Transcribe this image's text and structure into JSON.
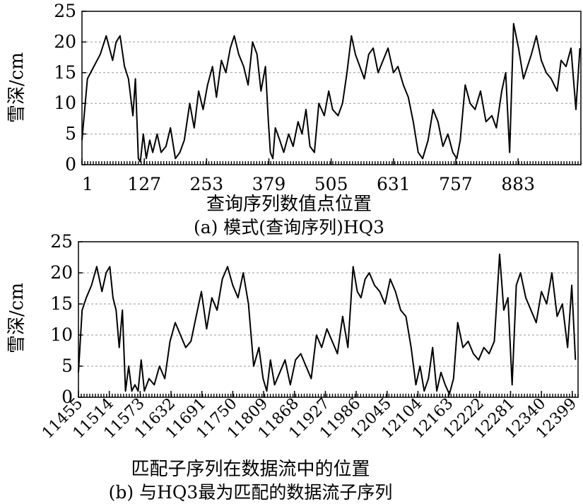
{
  "chart_data": [
    {
      "type": "line",
      "caption": "(a) 模式(查询序列)HQ3",
      "xlabel": "查询序列数值点位置",
      "ylabel": "雪深/cm",
      "xlim": [
        1,
        1010
      ],
      "ylim": [
        0,
        25
      ],
      "yticks": [
        0,
        5,
        10,
        15,
        20,
        25
      ],
      "xtick_labels": [
        "1",
        "127",
        "253",
        "379",
        "505",
        "631",
        "757",
        "883"
      ],
      "xtick_values": [
        1,
        127,
        253,
        379,
        505,
        631,
        757,
        883
      ],
      "grid": "horizontal",
      "series": [
        {
          "x": [
            1,
            12,
            25,
            38,
            50,
            63,
            70,
            78,
            87,
            95,
            104,
            109,
            115,
            119,
            125,
            131,
            138,
            144,
            153,
            161,
            171,
            180,
            190,
            199,
            208,
            219,
            228,
            237,
            246,
            255,
            265,
            273,
            283,
            292,
            301,
            309,
            318,
            328,
            337,
            346,
            355,
            363,
            372,
            378,
            382,
            387,
            392,
            401,
            409,
            419,
            428,
            438,
            446,
            454,
            462,
            471,
            480,
            491,
            500,
            508,
            519,
            528,
            537,
            546,
            554,
            563,
            572,
            581,
            590,
            600,
            610,
            620,
            631,
            640,
            651,
            661,
            671,
            681,
            690,
            701,
            711,
            721,
            731,
            741,
            751,
            759,
            766,
            776,
            786,
            796,
            807,
            818,
            830,
            839,
            850,
            858,
            866,
            874,
            884,
            894,
            902,
            910,
            920,
            930,
            940,
            950,
            962,
            970,
            980,
            990,
            1000,
            1008
          ],
          "y": [
            4,
            14,
            16,
            18,
            21,
            17,
            20,
            21,
            16,
            14,
            8,
            14,
            1,
            0.5,
            5,
            1,
            4,
            2,
            5,
            2,
            3,
            6,
            1,
            2,
            4,
            10,
            6,
            12,
            9,
            13,
            16,
            11,
            17,
            15,
            19,
            21,
            18,
            16,
            13,
            20,
            18,
            12,
            16,
            7,
            2,
            1,
            6,
            4,
            2,
            5,
            3,
            7,
            5,
            9,
            3,
            2,
            10,
            8,
            12,
            9,
            8,
            10,
            15,
            21,
            18,
            16,
            14,
            18,
            19,
            15,
            17,
            19,
            15,
            16,
            13,
            11,
            7,
            2,
            1,
            4,
            9,
            7,
            3,
            5,
            2,
            1,
            4,
            13,
            10,
            9,
            12,
            7,
            8,
            6,
            12,
            15,
            2,
            23,
            19,
            14,
            16,
            18,
            21,
            17,
            15,
            14,
            12,
            17,
            16,
            19,
            9,
            19
          ]
        }
      ]
    },
    {
      "type": "line",
      "caption": "(b) 与HQ3最为匹配的数据流子序列",
      "xlabel": "匹配子序列在数据流中的位置",
      "ylabel": "雪深/cm",
      "xlim": [
        11455,
        12410
      ],
      "ylim": [
        0,
        25
      ],
      "yticks": [
        0,
        5,
        10,
        15,
        20,
        25
      ],
      "xtick_labels": [
        "11455",
        "11514",
        "11573",
        "11632",
        "11691",
        "11750",
        "11809",
        "11868",
        "11927",
        "11986",
        "12045",
        "12104",
        "12163",
        "12222",
        "12281",
        "12340",
        "12399"
      ],
      "xtick_values": [
        11455,
        11514,
        11573,
        11632,
        11691,
        11750,
        11809,
        11868,
        11927,
        11986,
        12045,
        12104,
        12163,
        12222,
        12281,
        12340,
        12399
      ],
      "grid": "horizontal",
      "series": [
        {
          "x": [
            11455,
            11462,
            11470,
            11480,
            11490,
            11500,
            11508,
            11515,
            11521,
            11527,
            11533,
            11539,
            11545,
            11551,
            11557,
            11563,
            11569,
            11575,
            11581,
            11590,
            11600,
            11610,
            11620,
            11630,
            11640,
            11650,
            11660,
            11670,
            11680,
            11690,
            11700,
            11710,
            11720,
            11730,
            11740,
            11750,
            11760,
            11770,
            11780,
            11790,
            11800,
            11808,
            11815,
            11822,
            11830,
            11840,
            11850,
            11860,
            11870,
            11880,
            11890,
            11900,
            11910,
            11920,
            11930,
            11940,
            11950,
            11960,
            11970,
            11980,
            11988,
            11995,
            12003,
            12011,
            12021,
            12031,
            12041,
            12051,
            12061,
            12071,
            12081,
            12091,
            12100,
            12108,
            12116,
            12124,
            12132,
            12140,
            12148,
            12156,
            12164,
            12172,
            12180,
            12190,
            12200,
            12210,
            12220,
            12230,
            12240,
            12250,
            12260,
            12268,
            12276,
            12284,
            12292,
            12300,
            12310,
            12320,
            12330,
            12340,
            12350,
            12360,
            12370,
            12380,
            12390,
            12398,
            12405
          ],
          "y": [
            4,
            14,
            16,
            18,
            21,
            17,
            20,
            21,
            16,
            14,
            8,
            14,
            1,
            5,
            1,
            2,
            1,
            6,
            1,
            3,
            2,
            5,
            3,
            9,
            12,
            10,
            8,
            9,
            13,
            17,
            11,
            16,
            14,
            19,
            21,
            18,
            16,
            20,
            15,
            5,
            8,
            3,
            1,
            6,
            2,
            4,
            6,
            2,
            6,
            7,
            5,
            3,
            10,
            8,
            11,
            9,
            7,
            13,
            8,
            21,
            17,
            16,
            19,
            20,
            18,
            17,
            15,
            19,
            17,
            14,
            13,
            8,
            2,
            5,
            1,
            3,
            8,
            1,
            4,
            2,
            0.5,
            3,
            12,
            8,
            9,
            7,
            6,
            8,
            7,
            9,
            23,
            14,
            16,
            2,
            18,
            20,
            16,
            14,
            12,
            17,
            15,
            20,
            13,
            15,
            8,
            18,
            6
          ]
        }
      ]
    }
  ]
}
